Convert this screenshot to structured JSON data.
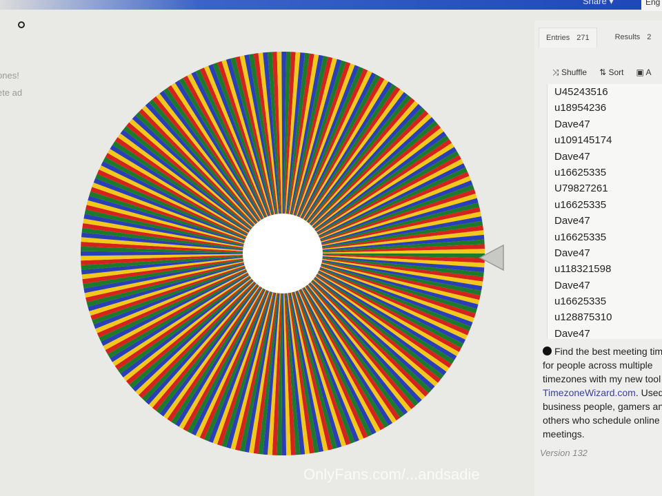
{
  "topbar": {
    "share_label": "Share ▾",
    "language": "Eng"
  },
  "left_panel": {
    "line1": "ones!",
    "line2": "ete ad"
  },
  "wheel": {
    "slice_count": 271,
    "colors": [
      "#1c7a2a",
      "#d4231c",
      "#f2c81c",
      "#2a3fb5"
    ],
    "center_color": "#ffffff"
  },
  "sidebar": {
    "tabs": [
      {
        "label": "Entries",
        "count": "271"
      },
      {
        "label": "Results",
        "count": "2"
      }
    ],
    "actions": {
      "shuffle": "Shuffle",
      "sort": "Sort",
      "add": "A"
    },
    "entries": [
      "U45243516",
      "u18954236",
      "Dave47",
      "u109145174",
      "Dave47",
      "u16625335",
      "U79827261",
      "u16625335",
      "Dave47",
      "u16625335",
      "Dave47",
      "u118321598",
      "Dave47",
      "u16625335",
      "u128875310",
      "Dave47"
    ],
    "ad": {
      "text1": "Find the best meeting time for people across multiple timezones with my new tool ",
      "link": "TimezoneWizard.com",
      "text2": ". Used by business people, gamers and others who schedule online meetings."
    },
    "version": "Version 132"
  },
  "watermark": "OnlyFans.com/...andsadie"
}
